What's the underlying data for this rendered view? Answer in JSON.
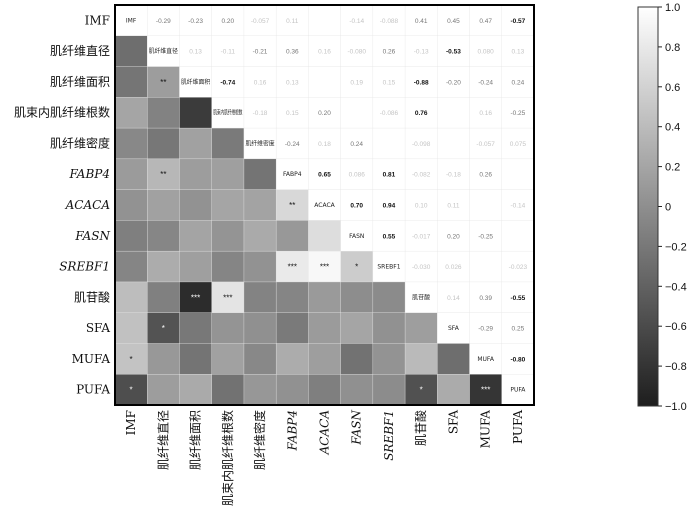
{
  "chart_data": {
    "type": "heatmap",
    "title": "",
    "variables": [
      "IMF",
      "肌纤维直径",
      "肌纤维面积",
      "肌束内肌纤维根数",
      "肌纤维密度",
      "FABP4",
      "ACACA",
      "FASN",
      "SREBF1",
      "肌苷酸",
      "SFA",
      "MUFA",
      "PUFA"
    ],
    "italic_variables": [
      "FABP4",
      "ACACA",
      "FASN",
      "SREBF1"
    ],
    "diagonal_labels": [
      "IMF",
      "肌纤维直径",
      "肌纤维面积",
      "肌束内肌纤维根数",
      "肌纤维密度",
      "FABP4",
      "ACACA",
      "FASN",
      "SREBF1",
      "肌苷酸",
      "SFA",
      "MUFA",
      "PUFA"
    ],
    "matrix": [
      [
        1,
        -0.29,
        -0.23,
        0.2,
        -0.057,
        0.11,
        0.03,
        -0.14,
        -0.088,
        0.41,
        0.45,
        0.47,
        -0.57
      ],
      [
        -0.29,
        1,
        0.13,
        -0.11,
        -0.21,
        0.36,
        0.16,
        -0.08,
        0.26,
        -0.13,
        -0.53,
        0.08,
        0.13
      ],
      [
        -0.23,
        0.13,
        1,
        -0.74,
        0.16,
        0.13,
        0.03,
        0.19,
        0.15,
        -0.88,
        -0.2,
        -0.24,
        0.24
      ],
      [
        0.2,
        -0.11,
        -0.74,
        1,
        -0.18,
        0.15,
        0.2,
        0.05,
        -0.086,
        0.76,
        0.05,
        0.16,
        -0.25
      ],
      [
        -0.057,
        -0.21,
        0.16,
        -0.18,
        1,
        -0.24,
        0.18,
        0.24,
        0.03,
        -0.098,
        0.01,
        -0.057,
        0.075
      ],
      [
        0.11,
        0.36,
        0.13,
        0.15,
        -0.24,
        1,
        0.65,
        0.086,
        0.81,
        -0.082,
        -0.18,
        0.26,
        0.02
      ],
      [
        0.03,
        0.16,
        0.03,
        0.2,
        0.18,
        0.65,
        1,
        0.7,
        0.94,
        0.1,
        0.11,
        0.14,
        -0.14
      ],
      [
        -0.14,
        -0.08,
        0.19,
        0.05,
        0.24,
        0.086,
        0.7,
        1,
        0.55,
        -0.017,
        0.2,
        -0.25,
        0.01
      ],
      [
        -0.088,
        0.26,
        0.15,
        -0.086,
        0.03,
        0.81,
        0.94,
        0.55,
        1,
        -0.03,
        0.026,
        0.04,
        -0.023
      ],
      [
        0.41,
        -0.13,
        -0.88,
        0.76,
        -0.098,
        -0.082,
        0.1,
        -0.017,
        -0.03,
        1,
        0.14,
        0.39,
        -0.55
      ],
      [
        0.45,
        -0.53,
        -0.2,
        0.05,
        0.01,
        -0.18,
        0.11,
        0.2,
        0.026,
        0.14,
        1,
        -0.29,
        0.25
      ],
      [
        0.47,
        0.08,
        -0.24,
        0.16,
        -0.057,
        0.26,
        0.14,
        -0.25,
        0.04,
        0.39,
        -0.29,
        1,
        -0.8
      ],
      [
        -0.57,
        0.13,
        0.24,
        -0.25,
        0.075,
        0.02,
        -0.14,
        0.01,
        -0.023,
        -0.55,
        0.25,
        -0.8,
        1
      ]
    ],
    "upper_value_labels": [
      [
        "",
        "-0.29",
        "-0.23",
        "0.20",
        "-0.057",
        "0.11",
        "",
        "-0.14",
        "-0.088",
        "0.41",
        "0.45",
        "0.47",
        "-0.57"
      ],
      [
        "",
        "",
        "0.13",
        "-0.11",
        "-0.21",
        "0.36",
        "0.16",
        "-0.080",
        "0.26",
        "-0.13",
        "-0.53",
        "0.080",
        "0.13"
      ],
      [
        "",
        "",
        "",
        "-0.74",
        "0.16",
        "0.13",
        "",
        "0.19",
        "0.15",
        "-0.88",
        "-0.20",
        "-0.24",
        "0.24"
      ],
      [
        "",
        "",
        "",
        "",
        "-0.18",
        "0.15",
        "0.20",
        "",
        "-0.086",
        "0.76",
        "",
        "0.16",
        "-0.25"
      ],
      [
        "",
        "",
        "",
        "",
        "",
        "-0.24",
        "0.18",
        "0.24",
        "",
        "-0.098",
        "",
        "-0.057",
        "0.075"
      ],
      [
        "",
        "",
        "",
        "",
        "",
        "",
        "0.65",
        "0.086",
        "0.81",
        "-0.082",
        "-0.18",
        "0.26",
        ""
      ],
      [
        "",
        "",
        "",
        "",
        "",
        "",
        "",
        "0.70",
        "0.94",
        "0.10",
        "0.11",
        "",
        "-0.14"
      ],
      [
        "",
        "",
        "",
        "",
        "",
        "",
        "",
        "",
        "0.55",
        "-0.017",
        "0.20",
        "-0.25",
        ""
      ],
      [
        "",
        "",
        "",
        "",
        "",
        "",
        "",
        "",
        "",
        "-0.030",
        "0.026",
        "",
        "-0.023"
      ],
      [
        "",
        "",
        "",
        "",
        "",
        "",
        "",
        "",
        "",
        "",
        "0.14",
        "0.39",
        "-0.55"
      ],
      [
        "",
        "",
        "",
        "",
        "",
        "",
        "",
        "",
        "",
        "",
        "",
        "-0.29",
        "0.25"
      ],
      [
        "",
        "",
        "",
        "",
        "",
        "",
        "",
        "",
        "",
        "",
        "",
        "",
        "-0.80"
      ],
      [
        "",
        "",
        "",
        "",
        "",
        "",
        "",
        "",
        "",
        "",
        "",
        "",
        ""
      ]
    ],
    "lower_significance_marks": [
      {
        "row": 2,
        "col": 1,
        "mark": "**"
      },
      {
        "row": 5,
        "col": 1,
        "mark": "**"
      },
      {
        "row": 6,
        "col": 5,
        "mark": "**"
      },
      {
        "row": 8,
        "col": 5,
        "mark": "***"
      },
      {
        "row": 8,
        "col": 6,
        "mark": "***"
      },
      {
        "row": 8,
        "col": 7,
        "mark": "*"
      },
      {
        "row": 9,
        "col": 2,
        "mark": "***"
      },
      {
        "row": 9,
        "col": 3,
        "mark": "***"
      },
      {
        "row": 10,
        "col": 1,
        "mark": "*"
      },
      {
        "row": 11,
        "col": 0,
        "mark": "*"
      },
      {
        "row": 12,
        "col": 0,
        "mark": "*"
      },
      {
        "row": 12,
        "col": 9,
        "mark": "*"
      },
      {
        "row": 12,
        "col": 11,
        "mark": "***"
      }
    ],
    "colorbar": {
      "range": [
        -1.0,
        1.0
      ],
      "ticks": [
        "1.0",
        "0.8",
        "0.6",
        "0.4",
        "0.2",
        "0",
        "−0.2",
        "−0.4",
        "−0.6",
        "−0.8",
        "−1.0"
      ],
      "tick_values": [
        1.0,
        0.8,
        0.6,
        0.4,
        0.2,
        0,
        -0.2,
        -0.4,
        -0.6,
        -0.8,
        -1.0
      ],
      "low_color": "#1e1e1e",
      "high_color": "#ffffff"
    }
  }
}
